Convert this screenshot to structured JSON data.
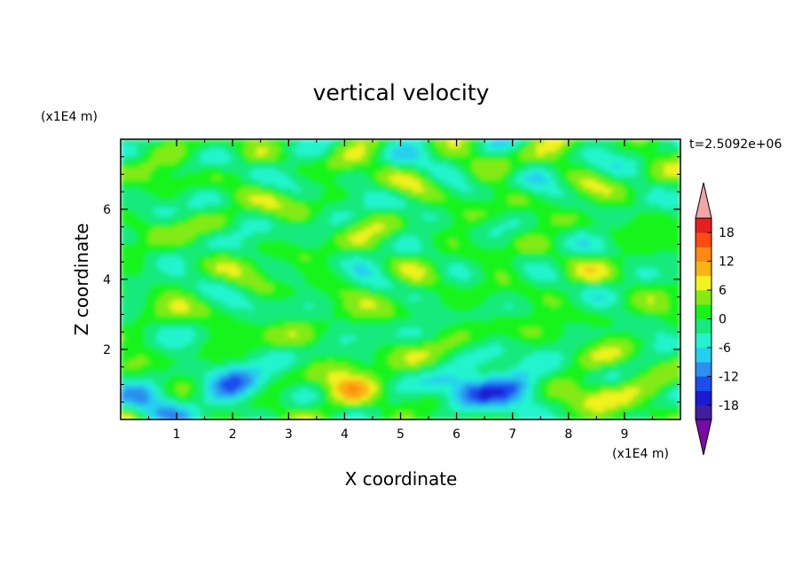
{
  "chart_data": {
    "type": "heatmap",
    "title": "vertical velocity",
    "xlabel": "X coordinate",
    "ylabel": "Z coordinate",
    "x_unit": "(x1E4 m)",
    "y_unit": "(x1E4 m)",
    "time_label": "t=2.5092e+06",
    "xlim": [
      0,
      10
    ],
    "ylim": [
      0,
      8
    ],
    "x_ticks": [
      "1",
      "2",
      "3",
      "4",
      "5",
      "6",
      "7",
      "8",
      "9"
    ],
    "y_ticks": [
      "2",
      "4",
      "6"
    ],
    "grid": false,
    "colorbar": {
      "ticks": [
        "18",
        "12",
        "6",
        "0",
        "-6",
        "-12",
        "-18"
      ],
      "levels": [
        -21,
        -18,
        -15,
        -12,
        -9,
        -6,
        -3,
        0,
        3,
        6,
        9,
        12,
        15,
        18,
        21
      ],
      "colors": [
        "#7a0aa6",
        "#3f1fa0",
        "#1a1ad2",
        "#1d4cf0",
        "#2b90ee",
        "#25d0ef",
        "#24f4cd",
        "#17ea7b",
        "#18f41a",
        "#84ea12",
        "#f2f21e",
        "#f8b414",
        "#ff8a10",
        "#ff4a14",
        "#e81e1e",
        "#f2a6a8"
      ],
      "placement": "right",
      "extend": "both"
    },
    "features": [
      {
        "kind": "updraft",
        "x": 4.1,
        "z": 0.9,
        "peak": 8
      },
      {
        "kind": "updraft",
        "x": 8.7,
        "z": 0.8,
        "peak": 8
      },
      {
        "kind": "downdraft",
        "x": 2.1,
        "z": 1.0,
        "peak": -11
      },
      {
        "kind": "downdraft",
        "x": 6.3,
        "z": 0.8,
        "peak": -12
      },
      {
        "kind": "downdraft",
        "x": 7.0,
        "z": 1.0,
        "peak": -11
      },
      {
        "kind": "downdraft",
        "x": 0.7,
        "z": 0.5,
        "peak": -9
      }
    ],
    "background_range": [
      -4,
      4
    ]
  }
}
